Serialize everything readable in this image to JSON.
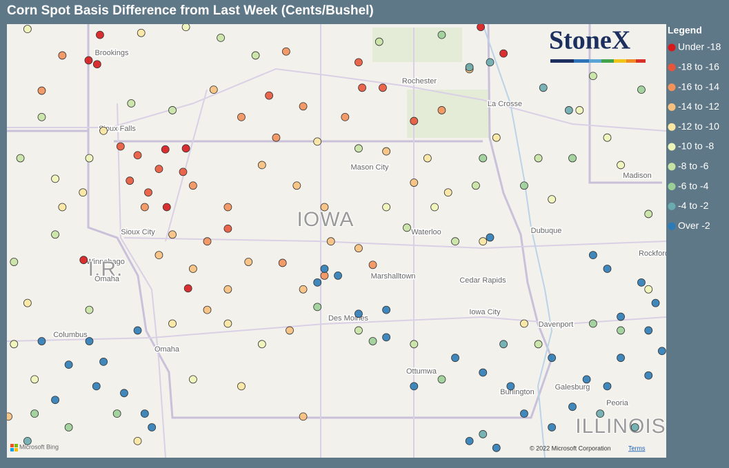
{
  "title": "Corn Spot Basis Difference from Last Week (Cents/Bushel)",
  "logo": "StoneX",
  "legend": {
    "title": "Legend",
    "items": [
      {
        "label": "Under -18",
        "color": "#d7191c"
      },
      {
        "label": "-18 to -16",
        "color": "#e8553a"
      },
      {
        "label": "-16 to -14",
        "color": "#f2915a"
      },
      {
        "label": "-14 to -12",
        "color": "#f8c07e"
      },
      {
        "label": "-12 to -10",
        "color": "#fbe7a2"
      },
      {
        "label": "-10 to -8",
        "color": "#eef5b8"
      },
      {
        "label": "-8 to -6",
        "color": "#c7e3a4"
      },
      {
        "label": "-6 to -4",
        "color": "#9bcf98"
      },
      {
        "label": "-4 to -2",
        "color": "#6aabae"
      },
      {
        "label": "Over -2",
        "color": "#2c7bb6"
      }
    ]
  },
  "map": {
    "lon_range": [
      -98.26,
      -88.98
    ],
    "lat_range": [
      40.17,
      44.6
    ],
    "places": [
      "Brookings",
      "Rochester",
      "La Crosse",
      "Sioux Falls",
      "Mason City",
      "Madison",
      "IOWA",
      "Waterloo",
      "Dubuque",
      "Sioux City",
      "Winnebago",
      "I.R.",
      "Omaha",
      "Marshalltown",
      "Cedar Rapids",
      "Rockford",
      "Des Moines",
      "Iowa City",
      "Davenport",
      "Columbus",
      "Omaha",
      "Ottumwa",
      "Galesburg",
      "Burlington",
      "Peoria",
      "ILLINOIS"
    ],
    "points": [
      [
        -97.11,
        44.23,
        0
      ],
      [
        -96.99,
        44.19,
        0
      ],
      [
        -96.03,
        43.32,
        0
      ],
      [
        -95.74,
        43.33,
        0
      ],
      [
        -97.18,
        42.19,
        0
      ],
      [
        -95.71,
        41.9,
        0
      ],
      [
        -96.01,
        42.73,
        0
      ],
      [
        -96.95,
        44.49,
        0
      ],
      [
        -91.59,
        44.57,
        0
      ],
      [
        -91.27,
        44.3,
        0
      ],
      [
        -96.66,
        43.35,
        1
      ],
      [
        -96.42,
        43.26,
        1
      ],
      [
        -96.12,
        43.12,
        1
      ],
      [
        -95.78,
        43.09,
        1
      ],
      [
        -96.53,
        43.0,
        1
      ],
      [
        -94.57,
        43.87,
        1
      ],
      [
        -93.26,
        43.95,
        1
      ],
      [
        -92.97,
        43.95,
        1
      ],
      [
        -93.31,
        44.21,
        1
      ],
      [
        -95.15,
        42.51,
        1
      ],
      [
        -96.27,
        42.88,
        1
      ],
      [
        -92.53,
        43.61,
        1
      ],
      [
        -97.48,
        44.28,
        2
      ],
      [
        -97.77,
        43.92,
        2
      ],
      [
        -94.96,
        43.65,
        2
      ],
      [
        -94.09,
        43.76,
        2
      ],
      [
        -95.64,
        42.95,
        2
      ],
      [
        -95.44,
        42.38,
        2
      ],
      [
        -94.38,
        42.16,
        2
      ],
      [
        -93.79,
        42.03,
        2
      ],
      [
        -93.11,
        42.14,
        2
      ],
      [
        -95.15,
        42.73,
        2
      ],
      [
        -96.32,
        42.73,
        2
      ],
      [
        -94.47,
        43.44,
        2
      ],
      [
        -93.5,
        43.65,
        2
      ],
      [
        -92.14,
        43.72,
        2
      ],
      [
        -94.33,
        44.32,
        2
      ],
      [
        -94.67,
        43.16,
        3
      ],
      [
        -94.18,
        42.95,
        3
      ],
      [
        -93.7,
        42.38,
        3
      ],
      [
        -93.31,
        42.31,
        3
      ],
      [
        -94.86,
        42.17,
        3
      ],
      [
        -95.15,
        41.89,
        3
      ],
      [
        -94.09,
        41.89,
        3
      ],
      [
        -95.93,
        42.45,
        3
      ],
      [
        -96.12,
        42.24,
        3
      ],
      [
        -95.44,
        41.68,
        3
      ],
      [
        -92.53,
        42.98,
        3
      ],
      [
        -92.92,
        43.3,
        3
      ],
      [
        -95.35,
        43.93,
        3
      ],
      [
        -91.75,
        44.14,
        3
      ],
      [
        -93.79,
        42.73,
        3
      ],
      [
        -94.28,
        41.47,
        3
      ],
      [
        -94.09,
        40.59,
        3
      ],
      [
        -98.24,
        40.59,
        3
      ],
      [
        -95.64,
        42.1,
        3
      ],
      [
        -96.37,
        44.51,
        4
      ],
      [
        -96.9,
        43.51,
        4
      ],
      [
        -97.19,
        42.88,
        4
      ],
      [
        -97.48,
        42.73,
        4
      ],
      [
        -92.34,
        43.23,
        4
      ],
      [
        -92.05,
        42.88,
        4
      ],
      [
        -91.56,
        42.38,
        4
      ],
      [
        -90.98,
        41.54,
        4
      ],
      [
        -95.15,
        41.54,
        4
      ],
      [
        -95.93,
        41.54,
        4
      ],
      [
        -91.37,
        43.44,
        4
      ],
      [
        -97.97,
        41.75,
        4
      ],
      [
        -94.96,
        40.9,
        4
      ],
      [
        -96.42,
        40.34,
        4
      ],
      [
        -93.89,
        43.4,
        4
      ],
      [
        -97.97,
        44.55,
        5
      ],
      [
        -95.74,
        44.57,
        5
      ],
      [
        -97.1,
        43.23,
        5
      ],
      [
        -97.58,
        43.02,
        5
      ],
      [
        -92.92,
        42.73,
        5
      ],
      [
        -92.24,
        42.73,
        5
      ],
      [
        -89.81,
        43.44,
        5
      ],
      [
        -89.62,
        43.16,
        5
      ],
      [
        -90.59,
        42.81,
        5
      ],
      [
        -89.23,
        41.89,
        5
      ],
      [
        -95.64,
        40.97,
        5
      ],
      [
        -94.67,
        41.33,
        5
      ],
      [
        -98.16,
        41.33,
        5
      ],
      [
        -97.87,
        40.97,
        5
      ],
      [
        -90.2,
        43.72,
        5
      ],
      [
        -95.25,
        44.46,
        6
      ],
      [
        -94.76,
        44.28,
        6
      ],
      [
        -96.51,
        43.79,
        6
      ],
      [
        -95.93,
        43.72,
        6
      ],
      [
        -97.77,
        43.65,
        6
      ],
      [
        -93.31,
        43.33,
        6
      ],
      [
        -92.63,
        42.52,
        6
      ],
      [
        -91.95,
        42.38,
        6
      ],
      [
        -91.66,
        42.95,
        6
      ],
      [
        -90.78,
        43.23,
        6
      ],
      [
        -89.23,
        42.66,
        6
      ],
      [
        -93.31,
        41.47,
        6
      ],
      [
        -92.53,
        41.33,
        6
      ],
      [
        -90.78,
        41.33,
        6
      ],
      [
        -97.58,
        42.45,
        6
      ],
      [
        -98.16,
        42.17,
        6
      ],
      [
        -97.1,
        41.68,
        6
      ],
      [
        -93.02,
        44.42,
        6
      ],
      [
        -90.01,
        44.07,
        6
      ],
      [
        -98.07,
        43.23,
        6
      ],
      [
        -92.14,
        44.49,
        7
      ],
      [
        -91.56,
        43.23,
        7
      ],
      [
        -90.98,
        42.95,
        7
      ],
      [
        -90.3,
        43.23,
        7
      ],
      [
        -90.01,
        41.54,
        7
      ],
      [
        -89.62,
        41.47,
        7
      ],
      [
        -97.87,
        40.62,
        7
      ],
      [
        -97.39,
        40.48,
        7
      ],
      [
        -96.71,
        40.62,
        7
      ],
      [
        -93.89,
        41.71,
        7
      ],
      [
        -93.11,
        41.36,
        7
      ],
      [
        -89.33,
        43.93,
        7
      ],
      [
        -92.14,
        40.97,
        7
      ],
      [
        -91.75,
        44.16,
        8
      ],
      [
        -91.46,
        44.21,
        8
      ],
      [
        -90.35,
        43.72,
        8
      ],
      [
        -90.71,
        43.95,
        8
      ],
      [
        -91.27,
        41.33,
        8
      ],
      [
        -89.91,
        40.62,
        8
      ],
      [
        -89.42,
        40.48,
        8
      ],
      [
        -91.56,
        40.41,
        8
      ],
      [
        -97.97,
        40.34,
        8
      ],
      [
        -90.01,
        42.24,
        9
      ],
      [
        -89.81,
        42.1,
        9
      ],
      [
        -89.33,
        41.96,
        9
      ],
      [
        -89.13,
        41.75,
        9
      ],
      [
        -89.62,
        41.61,
        9
      ],
      [
        -89.23,
        41.47,
        9
      ],
      [
        -89.04,
        41.26,
        9
      ],
      [
        -89.62,
        41.19,
        9
      ],
      [
        -90.1,
        40.97,
        9
      ],
      [
        -90.3,
        40.69,
        9
      ],
      [
        -89.81,
        40.9,
        9
      ],
      [
        -90.59,
        40.48,
        9
      ],
      [
        -90.98,
        40.62,
        9
      ],
      [
        -91.37,
        40.27,
        9
      ],
      [
        -91.75,
        40.34,
        9
      ],
      [
        -92.53,
        40.9,
        9
      ],
      [
        -92.92,
        41.4,
        9
      ],
      [
        -93.31,
        41.64,
        9
      ],
      [
        -93.6,
        42.03,
        9
      ],
      [
        -93.79,
        42.1,
        9
      ],
      [
        -93.89,
        41.96,
        9
      ],
      [
        -96.42,
        41.47,
        9
      ],
      [
        -97.1,
        41.36,
        9
      ],
      [
        -97.39,
        41.12,
        9
      ],
      [
        -96.9,
        41.15,
        9
      ],
      [
        -97.58,
        40.76,
        9
      ],
      [
        -97.0,
        40.9,
        9
      ],
      [
        -96.61,
        40.83,
        9
      ],
      [
        -96.32,
        40.62,
        9
      ],
      [
        -96.22,
        40.48,
        9
      ],
      [
        -97.77,
        41.36,
        9
      ],
      [
        -92.92,
        41.68,
        9
      ],
      [
        -91.95,
        41.19,
        9
      ],
      [
        -91.56,
        41.04,
        9
      ],
      [
        -91.17,
        40.9,
        9
      ],
      [
        -90.59,
        41.19,
        9
      ],
      [
        -89.23,
        41.01,
        9
      ],
      [
        -91.46,
        42.42,
        9
      ]
    ]
  },
  "footer": {
    "bing": "Microsoft Bing",
    "copyright": "© 2022 Microsoft Corporation",
    "terms": "Terms"
  }
}
